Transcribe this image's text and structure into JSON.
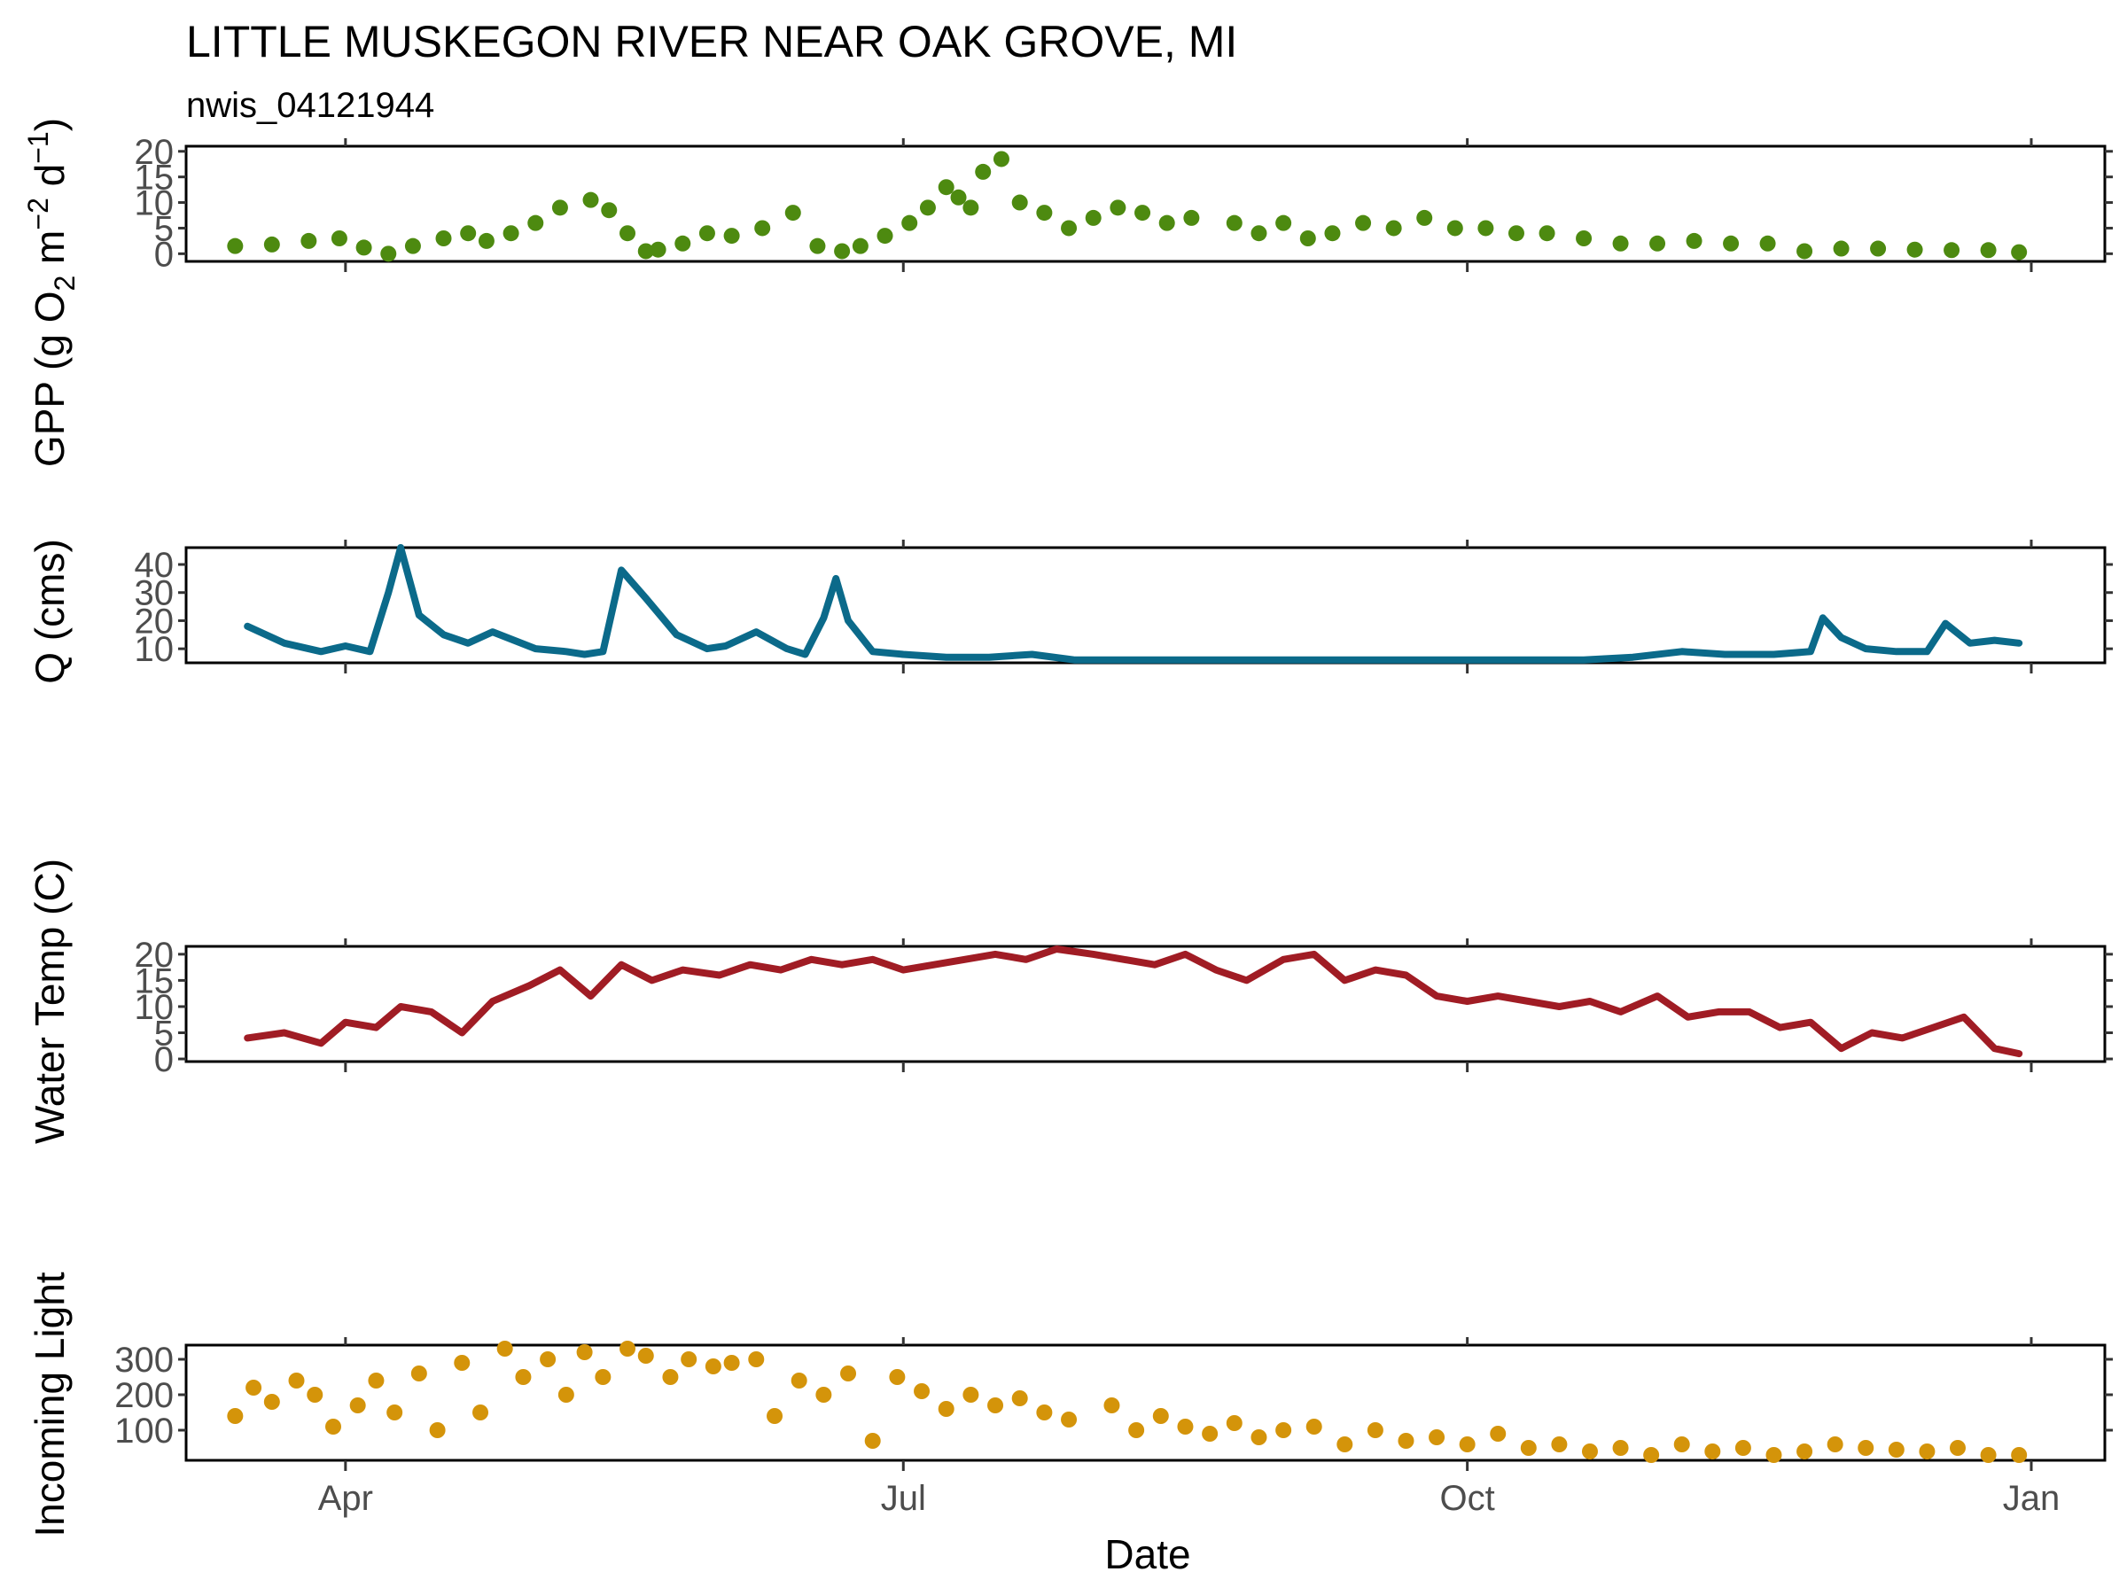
{
  "title": "LITTLE MUSKEGON RIVER NEAR OAK GROVE, MI",
  "subtitle": "nwis_04121944",
  "xlabel": "Date",
  "x_ticks": [
    {
      "date": "2023-04-01",
      "label": "Apr"
    },
    {
      "date": "2023-07-01",
      "label": "Jul"
    },
    {
      "date": "2023-10-01",
      "label": "Oct"
    },
    {
      "date": "2024-01-01",
      "label": "Jan"
    }
  ],
  "chart_data": [
    {
      "type": "scatter",
      "ylabel_main": "GPP (g  O",
      "ylabel_sub": "2",
      "ylabel_mid": " m",
      "ylabel_sup1": "−2",
      "ylabel_end": " d",
      "ylabel_sup2": "−1",
      "ylabel_close": ")",
      "yticks": [
        0,
        5,
        10,
        15,
        20
      ],
      "ylim": [
        -1.5,
        21
      ],
      "color": "#4d8a10",
      "x": [
        "2023-03-14",
        "2023-03-20",
        "2023-03-26",
        "2023-03-31",
        "2023-04-04",
        "2023-04-08",
        "2023-04-12",
        "2023-04-17",
        "2023-04-21",
        "2023-04-24",
        "2023-04-28",
        "2023-05-02",
        "2023-05-06",
        "2023-05-11",
        "2023-05-14",
        "2023-05-17",
        "2023-05-20",
        "2023-05-22",
        "2023-05-26",
        "2023-05-30",
        "2023-06-03",
        "2023-06-08",
        "2023-06-13",
        "2023-06-17",
        "2023-06-21",
        "2023-06-24",
        "2023-06-28",
        "2023-07-02",
        "2023-07-05",
        "2023-07-08",
        "2023-07-10",
        "2023-07-12",
        "2023-07-14",
        "2023-07-17",
        "2023-07-20",
        "2023-07-24",
        "2023-07-28",
        "2023-08-01",
        "2023-08-05",
        "2023-08-09",
        "2023-08-13",
        "2023-08-17",
        "2023-08-24",
        "2023-08-28",
        "2023-09-01",
        "2023-09-05",
        "2023-09-09",
        "2023-09-14",
        "2023-09-19",
        "2023-09-24",
        "2023-09-29",
        "2023-10-04",
        "2023-10-09",
        "2023-10-14",
        "2023-10-20",
        "2023-10-26",
        "2023-11-01",
        "2023-11-07",
        "2023-11-13",
        "2023-11-19",
        "2023-11-25",
        "2023-12-01",
        "2023-12-07",
        "2023-12-13",
        "2023-12-19",
        "2023-12-25",
        "2023-12-30"
      ],
      "values": [
        1.5,
        1.8,
        2.5,
        3,
        1.2,
        0,
        1.5,
        3,
        4,
        2.5,
        4,
        6,
        9,
        10.5,
        8.5,
        4,
        0.5,
        0.8,
        2,
        4,
        3.5,
        5,
        8,
        1.5,
        0.5,
        1.5,
        3.5,
        6,
        9,
        13,
        11,
        9,
        16,
        18.5,
        10,
        8,
        5,
        7,
        9,
        8,
        6,
        7,
        6,
        4,
        6,
        3,
        4,
        6,
        5,
        7,
        5,
        5,
        4,
        4,
        3,
        2,
        2,
        2.5,
        2,
        2,
        0.5,
        1,
        1,
        0.8,
        0.7,
        0.7,
        0.3
      ]
    },
    {
      "type": "line",
      "ylabel": "Q (cms)",
      "yticks": [
        10,
        20,
        30,
        40
      ],
      "ylim": [
        5,
        46
      ],
      "color": "#0b6a8a",
      "x": [
        "2023-03-16",
        "2023-03-22",
        "2023-03-28",
        "2023-04-01",
        "2023-04-05",
        "2023-04-08",
        "2023-04-10",
        "2023-04-13",
        "2023-04-17",
        "2023-04-21",
        "2023-04-25",
        "2023-05-02",
        "2023-05-07",
        "2023-05-10",
        "2023-05-13",
        "2023-05-16",
        "2023-05-20",
        "2023-05-25",
        "2023-05-30",
        "2023-06-02",
        "2023-06-07",
        "2023-06-12",
        "2023-06-15",
        "2023-06-18",
        "2023-06-20",
        "2023-06-22",
        "2023-06-26",
        "2023-07-01",
        "2023-07-08",
        "2023-07-15",
        "2023-07-22",
        "2023-07-29",
        "2023-08-05",
        "2023-08-15",
        "2023-08-25",
        "2023-09-05",
        "2023-09-20",
        "2023-10-05",
        "2023-10-20",
        "2023-10-28",
        "2023-11-05",
        "2023-11-12",
        "2023-11-20",
        "2023-11-26",
        "2023-11-28",
        "2023-12-01",
        "2023-12-05",
        "2023-12-10",
        "2023-12-15",
        "2023-12-18",
        "2023-12-22",
        "2023-12-26",
        "2023-12-30"
      ],
      "values": [
        18,
        12,
        9,
        11,
        9,
        30,
        46,
        22,
        15,
        12,
        16,
        10,
        9,
        8,
        9,
        38,
        28,
        15,
        10,
        11,
        16,
        10,
        8,
        21,
        35,
        20,
        9,
        8,
        7,
        7,
        8,
        6,
        6,
        6,
        6,
        6,
        6,
        6,
        6,
        7,
        9,
        8,
        8,
        9,
        21,
        14,
        10,
        9,
        9,
        19,
        12,
        13,
        12
      ]
    },
    {
      "type": "line",
      "ylabel": "Water Temp (C)",
      "yticks": [
        0,
        5,
        10,
        15,
        20
      ],
      "ylim": [
        -0.5,
        21.5
      ],
      "color": "#a01c24",
      "x": [
        "2023-03-16",
        "2023-03-22",
        "2023-03-28",
        "2023-04-01",
        "2023-04-06",
        "2023-04-10",
        "2023-04-15",
        "2023-04-20",
        "2023-04-25",
        "2023-05-01",
        "2023-05-06",
        "2023-05-11",
        "2023-05-16",
        "2023-05-21",
        "2023-05-26",
        "2023-06-01",
        "2023-06-06",
        "2023-06-11",
        "2023-06-16",
        "2023-06-21",
        "2023-06-26",
        "2023-07-01",
        "2023-07-06",
        "2023-07-11",
        "2023-07-16",
        "2023-07-21",
        "2023-07-26",
        "2023-08-01",
        "2023-08-06",
        "2023-08-11",
        "2023-08-16",
        "2023-08-21",
        "2023-08-26",
        "2023-09-01",
        "2023-09-06",
        "2023-09-11",
        "2023-09-16",
        "2023-09-21",
        "2023-09-26",
        "2023-10-01",
        "2023-10-06",
        "2023-10-11",
        "2023-10-16",
        "2023-10-21",
        "2023-10-26",
        "2023-11-01",
        "2023-11-06",
        "2023-11-11",
        "2023-11-16",
        "2023-11-21",
        "2023-11-26",
        "2023-12-01",
        "2023-12-06",
        "2023-12-11",
        "2023-12-16",
        "2023-12-21",
        "2023-12-26",
        "2023-12-30"
      ],
      "values": [
        4,
        5,
        3,
        7,
        6,
        10,
        9,
        5,
        11,
        14,
        17,
        12,
        18,
        15,
        17,
        16,
        18,
        17,
        19,
        18,
        19,
        17,
        18,
        19,
        20,
        19,
        21,
        20,
        19,
        18,
        20,
        17,
        15,
        19,
        20,
        15,
        17,
        16,
        12,
        11,
        12,
        11,
        10,
        11,
        9,
        12,
        8,
        9,
        9,
        6,
        7,
        2,
        5,
        4,
        6,
        8,
        2,
        1
      ]
    },
    {
      "type": "scatter",
      "ylabel": "Incoming Light",
      "yticks": [
        100,
        200,
        300
      ],
      "ylim": [
        15,
        340
      ],
      "color": "#d4940a",
      "x": [
        "2023-03-14",
        "2023-03-17",
        "2023-03-20",
        "2023-03-24",
        "2023-03-27",
        "2023-03-30",
        "2023-04-03",
        "2023-04-06",
        "2023-04-09",
        "2023-04-13",
        "2023-04-16",
        "2023-04-20",
        "2023-04-23",
        "2023-04-27",
        "2023-04-30",
        "2023-05-04",
        "2023-05-07",
        "2023-05-10",
        "2023-05-13",
        "2023-05-17",
        "2023-05-20",
        "2023-05-24",
        "2023-05-27",
        "2023-05-31",
        "2023-06-03",
        "2023-06-07",
        "2023-06-10",
        "2023-06-14",
        "2023-06-18",
        "2023-06-22",
        "2023-06-26",
        "2023-06-30",
        "2023-07-04",
        "2023-07-08",
        "2023-07-12",
        "2023-07-16",
        "2023-07-20",
        "2023-07-24",
        "2023-07-28",
        "2023-08-04",
        "2023-08-08",
        "2023-08-12",
        "2023-08-16",
        "2023-08-20",
        "2023-08-24",
        "2023-08-28",
        "2023-09-01",
        "2023-09-06",
        "2023-09-11",
        "2023-09-16",
        "2023-09-21",
        "2023-09-26",
        "2023-10-01",
        "2023-10-06",
        "2023-10-11",
        "2023-10-16",
        "2023-10-21",
        "2023-10-26",
        "2023-10-31",
        "2023-11-05",
        "2023-11-10",
        "2023-11-15",
        "2023-11-20",
        "2023-11-25",
        "2023-11-30",
        "2023-12-05",
        "2023-12-10",
        "2023-12-15",
        "2023-12-20",
        "2023-12-25",
        "2023-12-30"
      ],
      "values": [
        140,
        220,
        180,
        240,
        200,
        110,
        170,
        240,
        150,
        260,
        100,
        290,
        150,
        330,
        250,
        300,
        200,
        320,
        250,
        330,
        310,
        250,
        300,
        280,
        290,
        300,
        140,
        240,
        200,
        260,
        70,
        250,
        210,
        160,
        200,
        170,
        190,
        150,
        130,
        170,
        100,
        140,
        110,
        90,
        120,
        80,
        100,
        110,
        60,
        100,
        70,
        80,
        60,
        90,
        50,
        60,
        40,
        50,
        30,
        60,
        40,
        50,
        30,
        40,
        60,
        50,
        45,
        40,
        50,
        30,
        30
      ]
    }
  ]
}
